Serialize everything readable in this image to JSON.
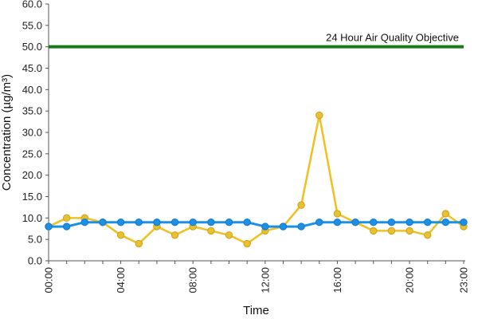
{
  "chart_data": {
    "type": "line",
    "xlabel": "Time",
    "ylabel": "Concentration (µg/m³)",
    "ylim": [
      0,
      60
    ],
    "y_ticks": [
      "0.0",
      "5.0",
      "10.0",
      "15.0",
      "20.0",
      "25.0",
      "30.0",
      "35.0",
      "40.0",
      "45.0",
      "50.0",
      "55.0",
      "60.0"
    ],
    "x_tick_labels": [
      "00:00",
      "04:00",
      "08:00",
      "12:00",
      "16:00",
      "20:00",
      "23:00"
    ],
    "x_tick_hours": [
      0,
      4,
      8,
      12,
      16,
      20,
      23
    ],
    "x_hours": [
      0,
      1,
      2,
      3,
      4,
      5,
      6,
      7,
      8,
      9,
      10,
      11,
      12,
      13,
      14,
      15,
      16,
      17,
      18,
      19,
      20,
      21,
      22,
      23
    ],
    "grid": false,
    "series": [
      {
        "color": "#f0c020",
        "marker_color": "#e8c030",
        "values": [
          8,
          10,
          10,
          9,
          6,
          4,
          8,
          6,
          8,
          7,
          6,
          4,
          7,
          8,
          13,
          34,
          11,
          9,
          7,
          7,
          7,
          6,
          11,
          8
        ]
      },
      {
        "color": "#1a90e8",
        "marker_color": "#1a90e8",
        "values": [
          8,
          8,
          9,
          9,
          9,
          9,
          9,
          9,
          9,
          9,
          9,
          9,
          8,
          8,
          8,
          9,
          9,
          9,
          9,
          9,
          9,
          9,
          9,
          9
        ]
      }
    ],
    "reference_line": {
      "label": "24 Hour Air Quality Objective",
      "value": 50,
      "color": "#1a7a1a"
    }
  }
}
